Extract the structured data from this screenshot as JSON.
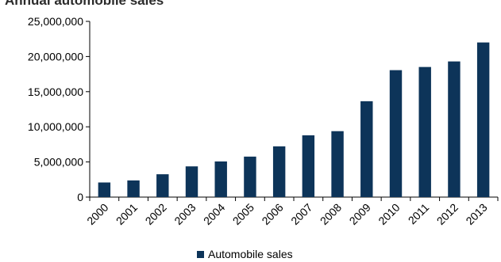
{
  "chart_data": {
    "type": "bar",
    "title": "Annual automobile sales",
    "xlabel": "",
    "ylabel": "",
    "categories": [
      "2000",
      "2001",
      "2002",
      "2003",
      "2004",
      "2005",
      "2006",
      "2007",
      "2008",
      "2009",
      "2010",
      "2011",
      "2012",
      "2013"
    ],
    "series": [
      {
        "name": "Automobile sales",
        "color": "#0d3459",
        "values": [
          2080000,
          2370000,
          3250000,
          4370000,
          5070000,
          5760000,
          7220000,
          8790000,
          9380000,
          13640000,
          18060000,
          18510000,
          19300000,
          22000000
        ]
      }
    ],
    "ylim": [
      0,
      25000000
    ],
    "yticks": [
      0,
      5000000,
      10000000,
      15000000,
      20000000,
      25000000
    ],
    "ytick_labels": [
      "0",
      "5,000,000",
      "10,000,000",
      "15,000,000",
      "20,000,000",
      "25,000,000"
    ],
    "grid": false,
    "legend_position": "bottom"
  }
}
